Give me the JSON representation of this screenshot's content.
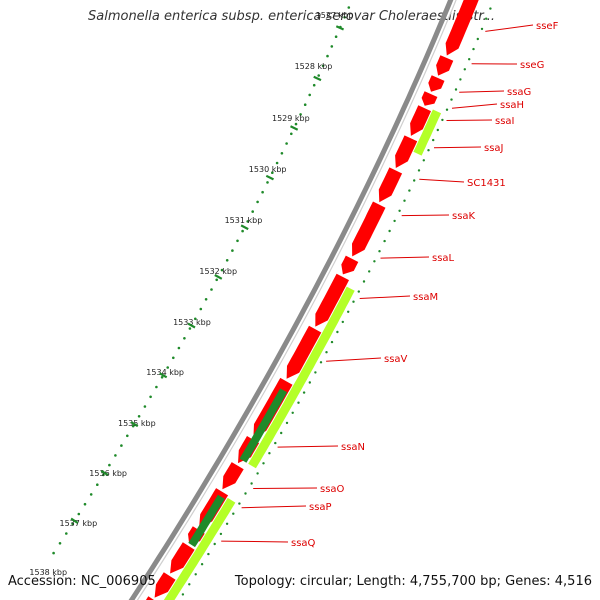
{
  "title": "Salmonella enterica subsp. enterica serovar Choleraesuis str...",
  "footer": {
    "accession": "Accession: NC_006905",
    "info": "Topology: circular; Length: 4,755,700 bp; Genes: 4,516"
  },
  "colors": {
    "backbone": "#8a8a8a",
    "gene_red": "#ff0000",
    "gene_green_light": "#b4ff28",
    "gene_green_dark": "#1f8a2a",
    "tick": "#1f8a2a",
    "label": "#dd0000"
  },
  "ticks": [
    "1527 kbp",
    "1528 kbp",
    "1529 kbp",
    "1530 kbp",
    "1531 kbp",
    "1532 kbp",
    "1533 kbp",
    "1534 kbp",
    "1535 kbp",
    "1536 kbp",
    "1537 kbp",
    "1538 kbp"
  ],
  "genes": [
    "sseF",
    "sseG",
    "ssaG",
    "ssaH",
    "ssaI",
    "ssaJ",
    "SC1431",
    "ssaK",
    "ssaL",
    "ssaM",
    "ssaV",
    "ssaN",
    "ssaO",
    "ssaP",
    "ssaQ"
  ]
}
